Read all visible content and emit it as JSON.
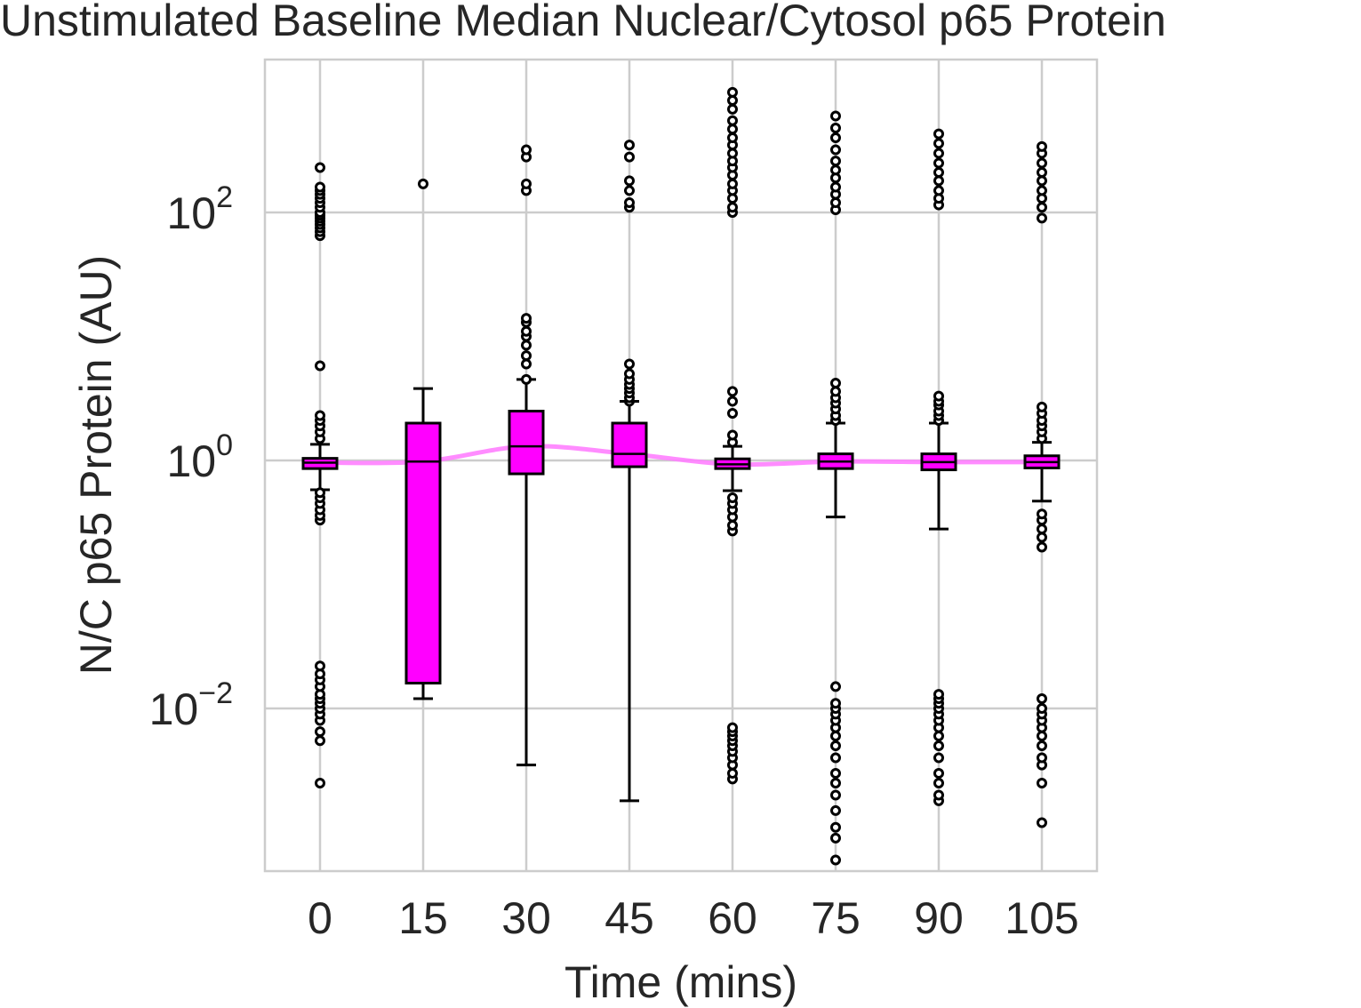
{
  "chart_data": {
    "type": "box",
    "title": "Unstimulated Baseline Median Nuclear/Cytosol p65 Protein",
    "xlabel": "Time (mins)",
    "ylabel": "N/C p65 Protein (AU)",
    "yscale": "log",
    "ylim": [
      0.0003,
      1000
    ],
    "yticks": [
      {
        "value": 0.01,
        "label_base": "10",
        "label_exp": "−2"
      },
      {
        "value": 1,
        "label_base": "10",
        "label_exp": "0"
      },
      {
        "value": 100,
        "label_base": "10",
        "label_exp": "2"
      }
    ],
    "categories": [
      "0",
      "15",
      "30",
      "45",
      "60",
      "75",
      "90",
      "105"
    ],
    "grid": true,
    "box_color": "#ff00ff",
    "median_line_color": "#ff80ff",
    "boxes": [
      {
        "category": "0",
        "whisker_low": 0.58,
        "q1": 0.86,
        "median": 0.96,
        "q3": 1.04,
        "whisker_high": 1.35,
        "fliers": [
          0.0025,
          0.0055,
          0.0065,
          0.008,
          0.009,
          0.01,
          0.011,
          0.012,
          0.013,
          0.015,
          0.017,
          0.019,
          0.022,
          0.33,
          0.36,
          0.4,
          0.45,
          0.5,
          0.55,
          1.5,
          1.7,
          1.9,
          2.1,
          2.3,
          5.8,
          65,
          70,
          75,
          80,
          85,
          90,
          95,
          100,
          110,
          120,
          130,
          140,
          150,
          160,
          230
        ]
      },
      {
        "category": "15",
        "whisker_low": 0.012,
        "q1": 0.016,
        "median": 0.98,
        "q3": 2.0,
        "whisker_high": 3.8,
        "fliers": [
          170
        ]
      },
      {
        "category": "30",
        "whisker_low": 0.0035,
        "q1": 0.78,
        "median": 1.3,
        "q3": 2.5,
        "whisker_high": 4.5,
        "fliers": [
          4.5,
          6,
          7,
          8.5,
          10,
          11,
          13,
          14,
          150,
          170,
          280,
          320
        ]
      },
      {
        "category": "45",
        "whisker_low": 0.0018,
        "q1": 0.89,
        "median": 1.13,
        "q3": 2.0,
        "whisker_high": 3.0,
        "fliers": [
          3.0,
          3.2,
          3.5,
          3.8,
          4.1,
          4.5,
          5.0,
          6.0,
          110,
          120,
          150,
          180,
          280,
          350
        ]
      },
      {
        "category": "60",
        "whisker_low": 0.57,
        "q1": 0.86,
        "median": 0.93,
        "q3": 1.03,
        "whisker_high": 1.3,
        "fliers": [
          0.0027,
          0.003,
          0.0035,
          0.004,
          0.0045,
          0.005,
          0.0055,
          0.006,
          0.0065,
          0.007,
          0.27,
          0.3,
          0.35,
          0.4,
          0.45,
          0.5,
          1.4,
          1.6,
          2.4,
          3.0,
          3.6,
          100,
          110,
          130,
          150,
          170,
          200,
          230,
          260,
          300,
          350,
          400,
          470,
          550,
          680,
          800,
          930
        ]
      },
      {
        "category": "75",
        "whisker_low": 0.35,
        "q1": 0.86,
        "median": 0.98,
        "q3": 1.13,
        "whisker_high": 2.0,
        "fliers": [
          0.0006,
          0.0009,
          0.0011,
          0.0015,
          0.002,
          0.0025,
          0.003,
          0.004,
          0.005,
          0.006,
          0.007,
          0.008,
          0.009,
          0.01,
          0.011,
          0.015,
          2.1,
          2.3,
          2.6,
          2.9,
          3.2,
          3.6,
          4.2,
          105,
          120,
          140,
          160,
          190,
          220,
          260,
          320,
          400,
          480,
          600
        ]
      },
      {
        "category": "90",
        "whisker_low": 0.28,
        "q1": 0.84,
        "median": 0.97,
        "q3": 1.13,
        "whisker_high": 2.0,
        "fliers": [
          0.0018,
          0.002,
          0.0025,
          0.003,
          0.004,
          0.005,
          0.006,
          0.007,
          0.008,
          0.009,
          0.01,
          0.011,
          0.012,
          0.013,
          2.1,
          2.3,
          2.5,
          2.8,
          3.0,
          3.3,
          115,
          130,
          150,
          180,
          210,
          250,
          300,
          360,
          430
        ]
      },
      {
        "category": "105",
        "whisker_low": 0.47,
        "q1": 0.87,
        "median": 0.97,
        "q3": 1.09,
        "whisker_high": 1.4,
        "fliers": [
          0.0012,
          0.0025,
          0.0035,
          0.004,
          0.005,
          0.006,
          0.007,
          0.008,
          0.009,
          0.01,
          0.012,
          0.2,
          0.24,
          0.28,
          0.33,
          0.37,
          1.5,
          1.7,
          1.9,
          2.1,
          2.4,
          2.7,
          90,
          110,
          130,
          150,
          180,
          210,
          250,
          300,
          340
        ]
      }
    ]
  }
}
